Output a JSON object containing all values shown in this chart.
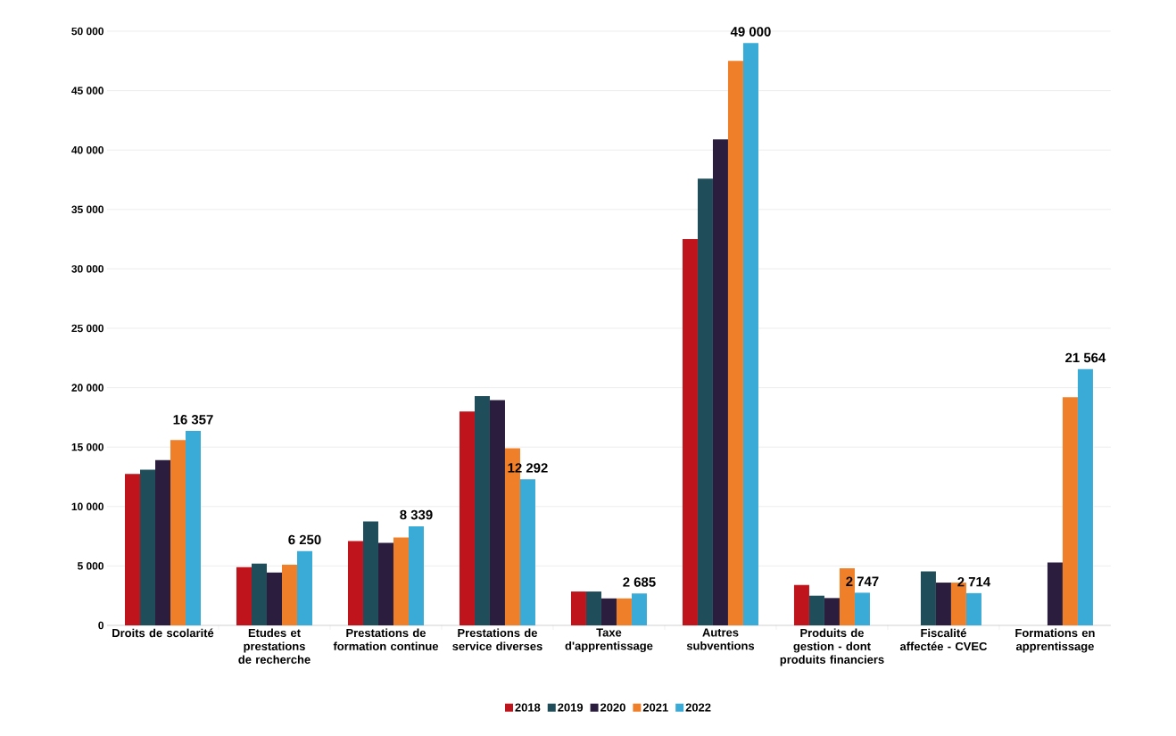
{
  "chart_data": {
    "type": "bar",
    "categories": [
      "Droits de scolarité",
      "Etudes et prestations de recherche",
      "Prestations de formation continue",
      "Prestations de service diverses",
      "Taxe d'apprentissage",
      "Autres subventions",
      "Produits de gestion - dont produits financiers",
      "Fiscalité affectée - CVEC",
      "Formations en apprentissage"
    ],
    "series": [
      {
        "name": "2018",
        "color": "#c0141c",
        "values": [
          12750,
          4900,
          7100,
          18000,
          2850,
          32500,
          3400,
          null,
          null
        ]
      },
      {
        "name": "2019",
        "color": "#1f4e5a",
        "values": [
          13100,
          5200,
          8750,
          19300,
          2850,
          37600,
          2500,
          4550,
          null
        ]
      },
      {
        "name": "2020",
        "color": "#2a1d3e",
        "values": [
          13900,
          4450,
          6950,
          18950,
          2270,
          40900,
          2300,
          3600,
          5300
        ]
      },
      {
        "name": "2021",
        "color": "#f07f2a",
        "values": [
          15600,
          5100,
          7400,
          14900,
          2270,
          47500,
          4800,
          3600,
          19200
        ]
      },
      {
        "name": "2022",
        "color": "#3aaad6",
        "values": [
          16357,
          6250,
          8339,
          12292,
          2685,
          49000,
          2747,
          2714,
          21564
        ],
        "value_labels": [
          "16 357",
          "6 250",
          "8 339",
          "12 292",
          "2 685",
          "49 000",
          "2 747",
          "2 714",
          "21 564"
        ]
      }
    ],
    "ylim": [
      0,
      50000
    ],
    "yticks": [
      {
        "value": 0,
        "label": "0"
      },
      {
        "value": 5000,
        "label": "5 000"
      },
      {
        "value": 10000,
        "label": "10 000"
      },
      {
        "value": 15000,
        "label": "15 000"
      },
      {
        "value": 20000,
        "label": "20 000"
      },
      {
        "value": 25000,
        "label": "25 000"
      },
      {
        "value": 30000,
        "label": "30 000"
      },
      {
        "value": 35000,
        "label": "35 000"
      },
      {
        "value": 40000,
        "label": "40 000"
      },
      {
        "value": 45000,
        "label": "45 000"
      },
      {
        "value": 50000,
        "label": "50 000"
      }
    ],
    "grid": "y",
    "legend": "bottom"
  }
}
